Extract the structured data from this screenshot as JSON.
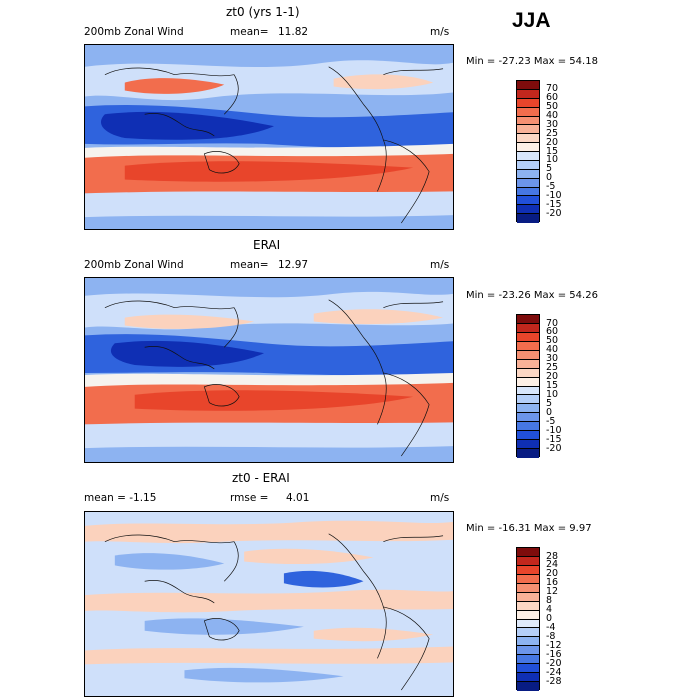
{
  "season": "JJA",
  "panels": [
    {
      "id": "model",
      "title": "zt0 (yrs 1-1)",
      "left_label": "200mb Zonal Wind",
      "stat_label": "mean=",
      "stat_value": "11.82",
      "units": "m/s",
      "minmax": "Min = -27.23 Max =  54.18",
      "ticks": [
        "70",
        "60",
        "50",
        "40",
        "30",
        "25",
        "20",
        "15",
        "10",
        "5",
        "0",
        "-5",
        "-10",
        "-15",
        "-20"
      ],
      "colors": [
        "#7e0c0c",
        "#c2271d",
        "#e8452b",
        "#f26d4d",
        "#f69072",
        "#f9b298",
        "#fcd7c4",
        "#fdf0e6",
        "#d8e6fb",
        "#b5cff8",
        "#8db3f1",
        "#6c95ea",
        "#4677e3",
        "#2150d9",
        "#0f2fb4",
        "#081c83"
      ]
    },
    {
      "id": "obs",
      "title": "ERAI",
      "left_label": "200mb Zonal Wind",
      "stat_label": "mean=",
      "stat_value": "12.97",
      "units": "m/s",
      "minmax": "Min = -23.26 Max =  54.26",
      "ticks": [
        "70",
        "60",
        "50",
        "40",
        "30",
        "25",
        "20",
        "15",
        "10",
        "5",
        "0",
        "-5",
        "-10",
        "-15",
        "-20"
      ],
      "colors": [
        "#7e0c0c",
        "#c2271d",
        "#e8452b",
        "#f26d4d",
        "#f69072",
        "#f9b298",
        "#fcd7c4",
        "#fdf0e6",
        "#d8e6fb",
        "#b5cff8",
        "#8db3f1",
        "#6c95ea",
        "#4677e3",
        "#2150d9",
        "#0f2fb4",
        "#081c83"
      ]
    },
    {
      "id": "diff",
      "title": "zt0 - ERAI",
      "left_label": "mean =   -1.15",
      "stat_label": "rmse =",
      "stat_value": "4.01",
      "units": "m/s",
      "minmax": "Min = -16.31 Max =    9.97",
      "ticks": [
        "28",
        "24",
        "20",
        "16",
        "12",
        "8",
        "4",
        "0",
        "-4",
        "-8",
        "-12",
        "-16",
        "-20",
        "-24",
        "-28"
      ],
      "colors": [
        "#7e0c0c",
        "#c2271d",
        "#e8452b",
        "#f26d4d",
        "#f69072",
        "#f9b298",
        "#fcd7c4",
        "#fdf0e6",
        "#dfeafb",
        "#b5cff8",
        "#8db3f1",
        "#6c95ea",
        "#4677e3",
        "#2150d9",
        "#0f2fb4",
        "#081c83"
      ]
    }
  ],
  "field_colors": {
    "deep_blue": "#0f2fb4",
    "mid_blue": "#2f63dd",
    "light_blue": "#8db3f1",
    "pale_blue": "#cfe0fa",
    "white": "#f6f3ee",
    "pale_red": "#fbd2bd",
    "mid_red": "#f26d4d",
    "strong_red": "#e8452b",
    "coast": "#111111"
  }
}
